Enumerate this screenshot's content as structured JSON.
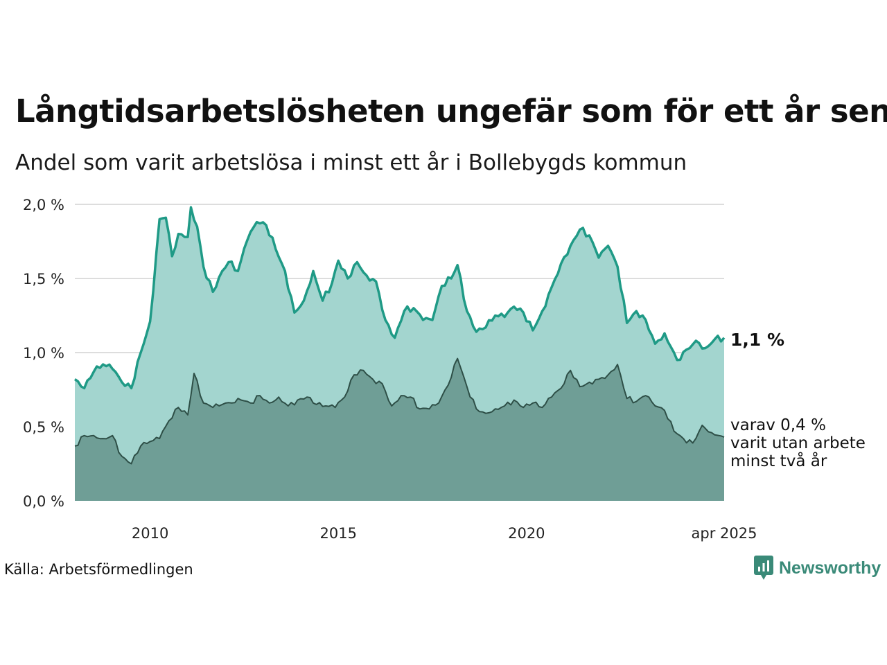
{
  "header": {
    "title": "Långtidsarbetslösheten ungefär som för ett år sen",
    "subtitle": "Andel som varit arbetslösa i minst ett år i Bollebygds kommun"
  },
  "footer": {
    "source": "Källa: Arbetsförmedlingen",
    "brand": "Newsworthy"
  },
  "colors": {
    "total_line": "#1f9a86",
    "total_fill": "#a3d5cf",
    "long_line": "#2e4f47",
    "long_fill": "#6f9e96",
    "grid": "#dddddd",
    "brand": "#3a8a78"
  },
  "chart_data": {
    "type": "area",
    "title": "Långtidsarbetslösheten ungefär som för ett år sen",
    "subtitle": "Andel som varit arbetslösa i minst ett år i Bollebygds kommun",
    "ylim": [
      0,
      2.0
    ],
    "y_ticks": [
      {
        "value": 0.0,
        "label": "0,0 %"
      },
      {
        "value": 0.5,
        "label": "0,5 %"
      },
      {
        "value": 1.0,
        "label": "1,0 %"
      },
      {
        "value": 1.5,
        "label": "1,5 %"
      },
      {
        "value": 2.0,
        "label": "2,0 %"
      }
    ],
    "x_range": [
      "2008-01",
      "2025-04"
    ],
    "x_ticks": [
      {
        "value": "2010-01",
        "label": "2010"
      },
      {
        "value": "2015-01",
        "label": "2015"
      },
      {
        "value": "2020-01",
        "label": "2020"
      },
      {
        "value": "2025-04",
        "label": "apr 2025"
      }
    ],
    "grid": true,
    "end_label": "1,1 %",
    "note_lines": [
      "varav 0,4 %",
      "varit utan arbete",
      "minst två år"
    ],
    "series": [
      {
        "key": "minst_ett_ar",
        "knots": [
          [
            "2008-01",
            0.82
          ],
          [
            "2008-04",
            0.76
          ],
          [
            "2008-07",
            0.87
          ],
          [
            "2008-10",
            0.92
          ],
          [
            "2009-01",
            0.89
          ],
          [
            "2009-04",
            0.8
          ],
          [
            "2009-07",
            0.76
          ],
          [
            "2009-10",
            1.0
          ],
          [
            "2010-01",
            1.21
          ],
          [
            "2010-04",
            1.9
          ],
          [
            "2010-06",
            1.91
          ],
          [
            "2010-08",
            1.65
          ],
          [
            "2010-10",
            1.8
          ],
          [
            "2011-01",
            1.78
          ],
          [
            "2011-02",
            1.98
          ],
          [
            "2011-04",
            1.85
          ],
          [
            "2011-06",
            1.58
          ],
          [
            "2011-09",
            1.41
          ],
          [
            "2011-12",
            1.55
          ],
          [
            "2012-02",
            1.61
          ],
          [
            "2012-05",
            1.55
          ],
          [
            "2012-08",
            1.76
          ],
          [
            "2012-11",
            1.88
          ],
          [
            "2013-02",
            1.86
          ],
          [
            "2013-05",
            1.7
          ],
          [
            "2013-08",
            1.55
          ],
          [
            "2013-11",
            1.27
          ],
          [
            "2014-02",
            1.35
          ],
          [
            "2014-05",
            1.55
          ],
          [
            "2014-08",
            1.35
          ],
          [
            "2014-11",
            1.47
          ],
          [
            "2015-01",
            1.62
          ],
          [
            "2015-04",
            1.5
          ],
          [
            "2015-07",
            1.61
          ],
          [
            "2015-10",
            1.52
          ],
          [
            "2016-01",
            1.48
          ],
          [
            "2016-04",
            1.22
          ],
          [
            "2016-07",
            1.1
          ],
          [
            "2016-10",
            1.28
          ],
          [
            "2017-01",
            1.3
          ],
          [
            "2017-04",
            1.22
          ],
          [
            "2017-07",
            1.22
          ],
          [
            "2017-10",
            1.45
          ],
          [
            "2018-01",
            1.5
          ],
          [
            "2018-03",
            1.59
          ],
          [
            "2018-06",
            1.28
          ],
          [
            "2018-09",
            1.14
          ],
          [
            "2018-12",
            1.17
          ],
          [
            "2019-03",
            1.25
          ],
          [
            "2019-06",
            1.24
          ],
          [
            "2019-09",
            1.31
          ],
          [
            "2019-12",
            1.27
          ],
          [
            "2020-03",
            1.15
          ],
          [
            "2020-06",
            1.28
          ],
          [
            "2020-09",
            1.44
          ],
          [
            "2020-12",
            1.6
          ],
          [
            "2021-03",
            1.72
          ],
          [
            "2021-06",
            1.83
          ],
          [
            "2021-09",
            1.79
          ],
          [
            "2021-12",
            1.64
          ],
          [
            "2022-03",
            1.72
          ],
          [
            "2022-06",
            1.58
          ],
          [
            "2022-09",
            1.2
          ],
          [
            "2022-12",
            1.28
          ],
          [
            "2023-03",
            1.22
          ],
          [
            "2023-06",
            1.06
          ],
          [
            "2023-09",
            1.13
          ],
          [
            "2023-12",
            1.0
          ],
          [
            "2024-01",
            0.95
          ],
          [
            "2024-04",
            1.02
          ],
          [
            "2024-07",
            1.08
          ],
          [
            "2024-10",
            1.03
          ],
          [
            "2025-01",
            1.09
          ],
          [
            "2025-04",
            1.1
          ]
        ]
      },
      {
        "key": "minst_tva_ar",
        "knots": [
          [
            "2008-01",
            0.37
          ],
          [
            "2008-04",
            0.44
          ],
          [
            "2008-07",
            0.44
          ],
          [
            "2008-10",
            0.42
          ],
          [
            "2009-01",
            0.44
          ],
          [
            "2009-04",
            0.3
          ],
          [
            "2009-07",
            0.25
          ],
          [
            "2009-10",
            0.37
          ],
          [
            "2010-01",
            0.4
          ],
          [
            "2010-04",
            0.42
          ],
          [
            "2010-07",
            0.54
          ],
          [
            "2010-10",
            0.63
          ],
          [
            "2011-01",
            0.58
          ],
          [
            "2011-03",
            0.86
          ],
          [
            "2011-06",
            0.66
          ],
          [
            "2011-09",
            0.63
          ],
          [
            "2011-12",
            0.65
          ],
          [
            "2012-03",
            0.66
          ],
          [
            "2012-06",
            0.68
          ],
          [
            "2012-09",
            0.66
          ],
          [
            "2012-12",
            0.71
          ],
          [
            "2013-03",
            0.66
          ],
          [
            "2013-06",
            0.7
          ],
          [
            "2013-09",
            0.64
          ],
          [
            "2013-12",
            0.68
          ],
          [
            "2014-03",
            0.7
          ],
          [
            "2014-06",
            0.65
          ],
          [
            "2014-09",
            0.64
          ],
          [
            "2014-12",
            0.63
          ],
          [
            "2015-03",
            0.7
          ],
          [
            "2015-06",
            0.85
          ],
          [
            "2015-09",
            0.88
          ],
          [
            "2015-12",
            0.82
          ],
          [
            "2016-03",
            0.79
          ],
          [
            "2016-06",
            0.64
          ],
          [
            "2016-09",
            0.71
          ],
          [
            "2016-12",
            0.7
          ],
          [
            "2017-03",
            0.62
          ],
          [
            "2017-06",
            0.62
          ],
          [
            "2017-09",
            0.66
          ],
          [
            "2017-12",
            0.78
          ],
          [
            "2018-03",
            0.96
          ],
          [
            "2018-06",
            0.77
          ],
          [
            "2018-09",
            0.62
          ],
          [
            "2018-12",
            0.59
          ],
          [
            "2019-03",
            0.62
          ],
          [
            "2019-06",
            0.64
          ],
          [
            "2019-09",
            0.68
          ],
          [
            "2019-12",
            0.63
          ],
          [
            "2020-03",
            0.66
          ],
          [
            "2020-06",
            0.63
          ],
          [
            "2020-09",
            0.7
          ],
          [
            "2020-12",
            0.76
          ],
          [
            "2021-03",
            0.88
          ],
          [
            "2021-06",
            0.77
          ],
          [
            "2021-09",
            0.8
          ],
          [
            "2021-12",
            0.82
          ],
          [
            "2022-03",
            0.85
          ],
          [
            "2022-06",
            0.92
          ],
          [
            "2022-09",
            0.69
          ],
          [
            "2022-12",
            0.67
          ],
          [
            "2023-03",
            0.71
          ],
          [
            "2023-06",
            0.64
          ],
          [
            "2023-09",
            0.61
          ],
          [
            "2023-12",
            0.47
          ],
          [
            "2024-03",
            0.42
          ],
          [
            "2024-06",
            0.39
          ],
          [
            "2024-09",
            0.51
          ],
          [
            "2024-12",
            0.46
          ],
          [
            "2025-04",
            0.43
          ]
        ]
      }
    ]
  }
}
